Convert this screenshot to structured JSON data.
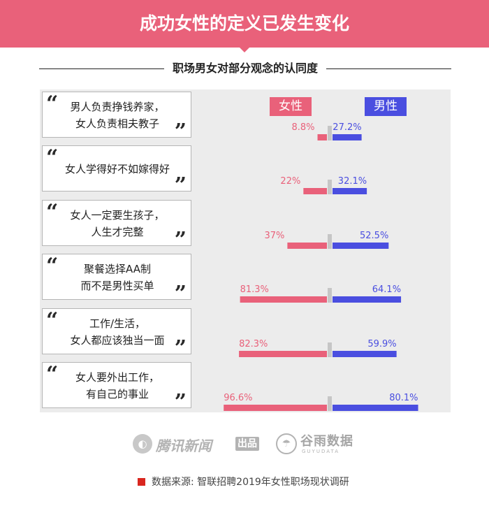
{
  "header": {
    "title": "成功女性的定义已发生变化",
    "subtitle": "职场男女对部分观念的认同度"
  },
  "colors": {
    "female": "#e9617a",
    "male": "#4a4ee0",
    "banner": "#e9617a",
    "panel": "#ececec"
  },
  "chart_data": {
    "type": "bar",
    "title": "职场男女对部分观念的认同度",
    "orientation": "horizontal-diverging",
    "categories": [
      [
        "男人负责挣钱养家，",
        "女人负责相夫教子"
      ],
      [
        "女人学得好不如嫁得好"
      ],
      [
        "女人一定要生孩子，",
        "人生才完整"
      ],
      [
        "聚餐选择AA制",
        "而不是男性买单"
      ],
      [
        "工作/生活，",
        "女人都应该独当一面"
      ],
      [
        "女人要外出工作，",
        "有自己的事业"
      ]
    ],
    "series": [
      {
        "name": "女性",
        "values": [
          8.8,
          22,
          37,
          81.3,
          82.3,
          96.6
        ],
        "labels": [
          "8.8%",
          "22%",
          "37%",
          "81.3%",
          "82.3%",
          "96.6%"
        ]
      },
      {
        "name": "男性",
        "values": [
          27.2,
          32.1,
          52.5,
          64.1,
          59.9,
          80.1
        ],
        "labels": [
          "27.2%",
          "32.1%",
          "52.5%",
          "64.1%",
          "59.9%",
          "80.1%"
        ]
      }
    ],
    "xlim": [
      0,
      100
    ],
    "legend": "top"
  },
  "logos": {
    "tencent": "腾讯新闻",
    "chupin": "出品",
    "guyu": "谷雨数据",
    "guyu_sub": "GUYUDATA"
  },
  "source": "数据来源: 智联招聘2019年女性职场现状调研"
}
